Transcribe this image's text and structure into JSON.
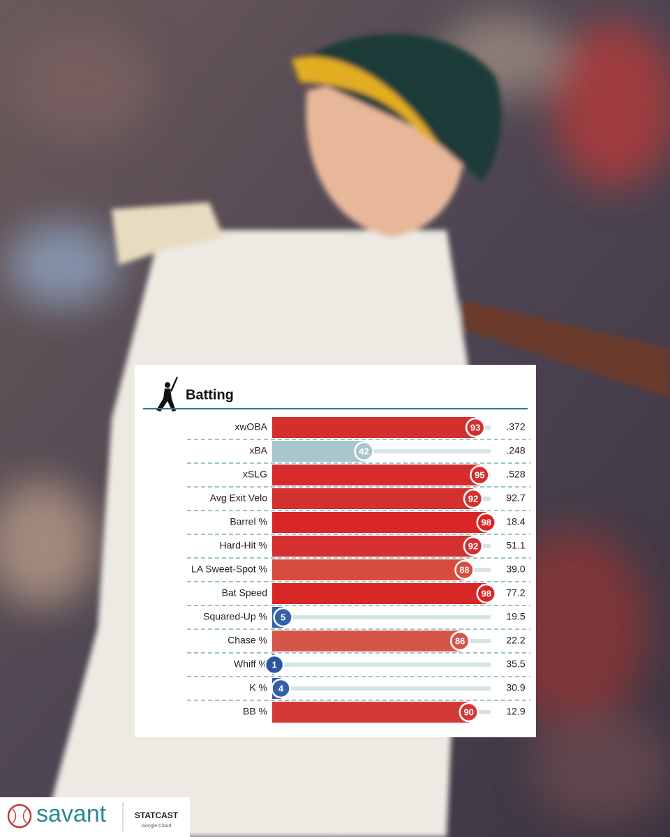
{
  "chart_data": {
    "type": "percentile",
    "title": "Batting",
    "categories": [
      "xwOBA",
      "xBA",
      "xSLG",
      "Avg Exit Velo",
      "Barrel %",
      "Hard-Hit %",
      "LA Sweet-Spot %",
      "Bat Speed",
      "Squared-Up %",
      "Chase %",
      "Whiff %",
      "K %",
      "BB %"
    ],
    "values": [
      93,
      42,
      95,
      92,
      98,
      92,
      88,
      98,
      5,
      86,
      1,
      4,
      90
    ],
    "colors": [
      "#d42f2f",
      "#a9c6cd",
      "#d82b2b",
      "#d4302f",
      "#d92626",
      "#d4302f",
      "#d84c3e",
      "#d92626",
      "#3462aa",
      "#d4564a",
      "#2c56a3",
      "#3360a8",
      "#d43a35"
    ],
    "stats": [
      ".372",
      ".248",
      ".528",
      "92.7",
      "18.4",
      "51.1",
      "39.0",
      "77.2",
      "19.5",
      "22.2",
      "35.5",
      "30.9",
      "12.9"
    ],
    "xlim": [
      0,
      100
    ]
  },
  "branding": {
    "logo": "savant",
    "partner": "STATCAST",
    "sponsor": "Google Cloud"
  }
}
